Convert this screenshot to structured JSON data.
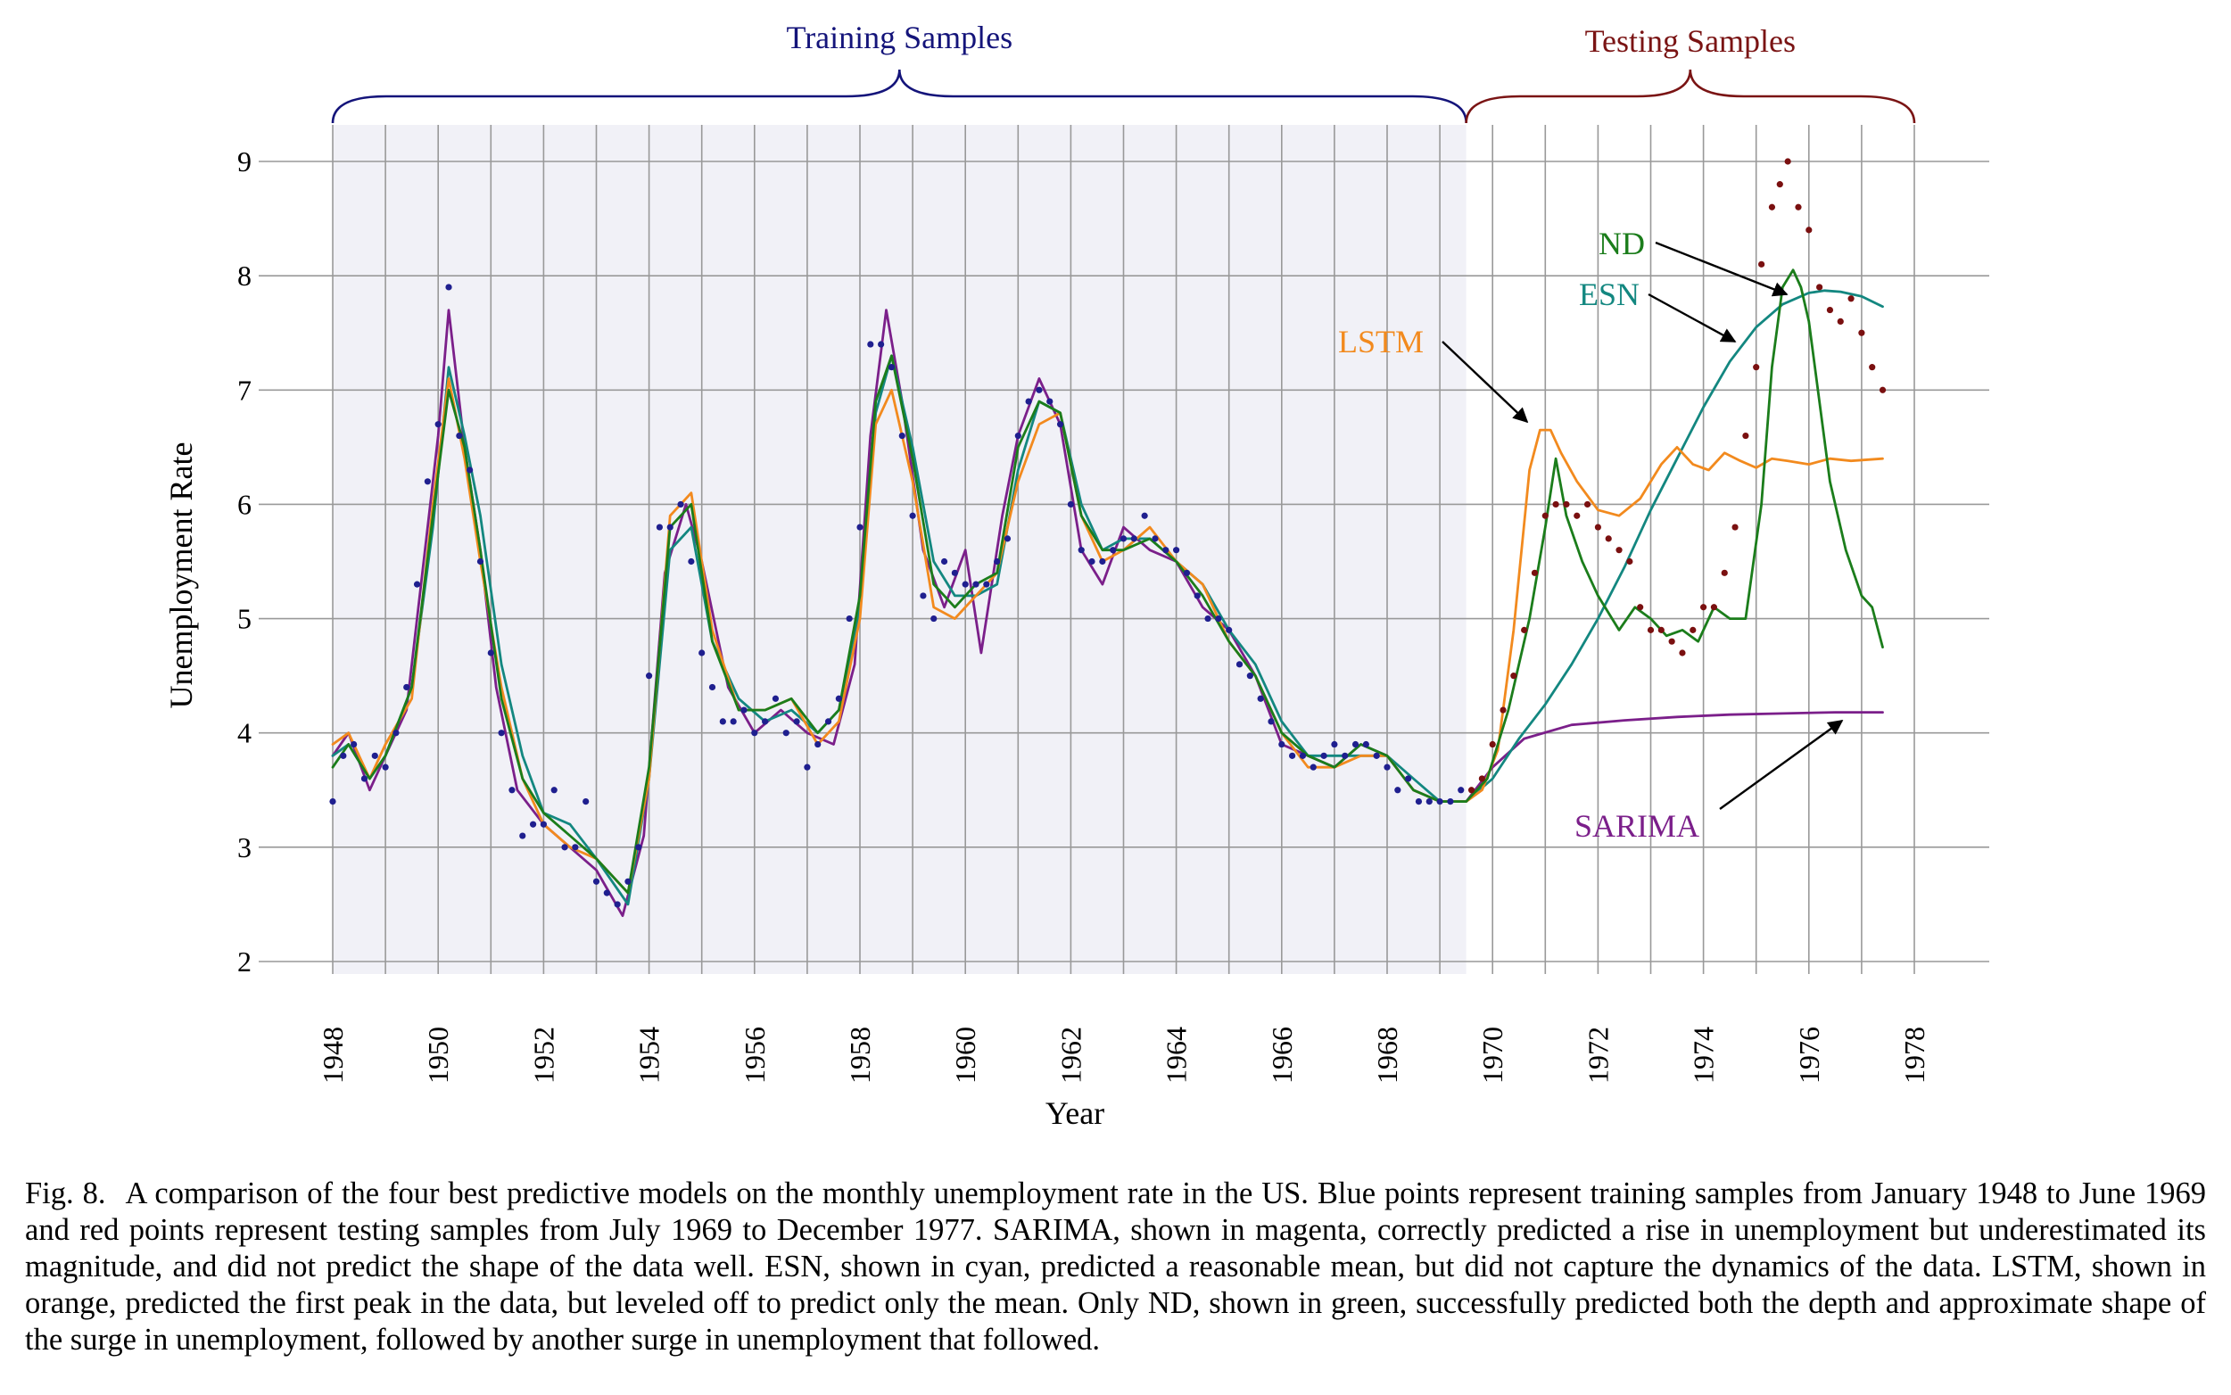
{
  "chart_data": {
    "type": "line",
    "xlabel": "Year",
    "ylabel": "Unemployment Rate",
    "xlim": [
      1948,
      1978
    ],
    "ylim": [
      2,
      9
    ],
    "x_ticks": [
      "1948",
      "1950",
      "1952",
      "1954",
      "1956",
      "1958",
      "1960",
      "1962",
      "1964",
      "1966",
      "1968",
      "1970",
      "1972",
      "1974",
      "1976",
      "1978"
    ],
    "y_ticks": [
      "2",
      "3",
      "4",
      "5",
      "6",
      "7",
      "8",
      "9"
    ],
    "x_grid_step": 1,
    "grid": true,
    "training_region": [
      1948,
      1969.5
    ],
    "bracket_labels": {
      "training": "Training Samples",
      "testing": "Testing Samples"
    },
    "colors": {
      "training_points": "#1f1f8f",
      "testing_points": "#7a1010",
      "SARIMA": "#7b1f8a",
      "ESN": "#138780",
      "LSTM": "#f28a1e",
      "ND": "#1b7d1b",
      "training_label": "#14147a",
      "testing_label": "#7a1414",
      "shade": "#f1f1f7"
    },
    "training_points": [
      [
        1948.0,
        3.4
      ],
      [
        1948.2,
        3.8
      ],
      [
        1948.4,
        3.9
      ],
      [
        1948.6,
        3.6
      ],
      [
        1948.8,
        3.8
      ],
      [
        1949.0,
        3.7
      ],
      [
        1949.2,
        4.0
      ],
      [
        1949.4,
        4.4
      ],
      [
        1949.6,
        5.3
      ],
      [
        1949.8,
        6.2
      ],
      [
        1950.0,
        6.7
      ],
      [
        1950.2,
        7.9
      ],
      [
        1950.4,
        6.6
      ],
      [
        1950.6,
        6.3
      ],
      [
        1950.8,
        5.5
      ],
      [
        1951.0,
        4.7
      ],
      [
        1951.2,
        4.0
      ],
      [
        1951.4,
        3.5
      ],
      [
        1951.6,
        3.1
      ],
      [
        1951.8,
        3.2
      ],
      [
        1952.0,
        3.2
      ],
      [
        1952.2,
        3.5
      ],
      [
        1952.4,
        3.0
      ],
      [
        1952.6,
        3.0
      ],
      [
        1952.8,
        3.4
      ],
      [
        1953.0,
        2.7
      ],
      [
        1953.2,
        2.6
      ],
      [
        1953.4,
        2.5
      ],
      [
        1953.6,
        2.7
      ],
      [
        1953.8,
        3.0
      ],
      [
        1954.0,
        4.5
      ],
      [
        1954.2,
        5.8
      ],
      [
        1954.4,
        5.8
      ],
      [
        1954.6,
        6.0
      ],
      [
        1954.8,
        5.5
      ],
      [
        1955.0,
        4.7
      ],
      [
        1955.2,
        4.4
      ],
      [
        1955.4,
        4.1
      ],
      [
        1955.6,
        4.1
      ],
      [
        1955.8,
        4.2
      ],
      [
        1956.0,
        4.0
      ],
      [
        1956.2,
        4.1
      ],
      [
        1956.4,
        4.3
      ],
      [
        1956.6,
        4.0
      ],
      [
        1956.8,
        4.1
      ],
      [
        1957.0,
        3.7
      ],
      [
        1957.2,
        3.9
      ],
      [
        1957.4,
        4.1
      ],
      [
        1957.6,
        4.3
      ],
      [
        1957.8,
        5.0
      ],
      [
        1958.0,
        5.8
      ],
      [
        1958.2,
        7.4
      ],
      [
        1958.4,
        7.4
      ],
      [
        1958.6,
        7.2
      ],
      [
        1958.8,
        6.6
      ],
      [
        1959.0,
        5.9
      ],
      [
        1959.2,
        5.2
      ],
      [
        1959.4,
        5.0
      ],
      [
        1959.6,
        5.5
      ],
      [
        1959.8,
        5.4
      ],
      [
        1960.0,
        5.3
      ],
      [
        1960.2,
        5.3
      ],
      [
        1960.4,
        5.3
      ],
      [
        1960.6,
        5.5
      ],
      [
        1960.8,
        5.7
      ],
      [
        1961.0,
        6.6
      ],
      [
        1961.2,
        6.9
      ],
      [
        1961.4,
        7.0
      ],
      [
        1961.6,
        6.9
      ],
      [
        1961.8,
        6.7
      ],
      [
        1962.0,
        6.0
      ],
      [
        1962.2,
        5.6
      ],
      [
        1962.4,
        5.5
      ],
      [
        1962.6,
        5.5
      ],
      [
        1962.8,
        5.6
      ],
      [
        1963.0,
        5.7
      ],
      [
        1963.2,
        5.7
      ],
      [
        1963.4,
        5.9
      ],
      [
        1963.6,
        5.7
      ],
      [
        1963.8,
        5.6
      ],
      [
        1964.0,
        5.6
      ],
      [
        1964.2,
        5.4
      ],
      [
        1964.4,
        5.2
      ],
      [
        1964.6,
        5.0
      ],
      [
        1964.8,
        5.0
      ],
      [
        1965.0,
        4.9
      ],
      [
        1965.2,
        4.6
      ],
      [
        1965.4,
        4.5
      ],
      [
        1965.6,
        4.3
      ],
      [
        1965.8,
        4.1
      ],
      [
        1966.0,
        3.9
      ],
      [
        1966.2,
        3.8
      ],
      [
        1966.4,
        3.8
      ],
      [
        1966.6,
        3.7
      ],
      [
        1966.8,
        3.8
      ],
      [
        1967.0,
        3.9
      ],
      [
        1967.2,
        3.8
      ],
      [
        1967.4,
        3.9
      ],
      [
        1967.6,
        3.9
      ],
      [
        1967.8,
        3.8
      ],
      [
        1968.0,
        3.7
      ],
      [
        1968.2,
        3.5
      ],
      [
        1968.4,
        3.6
      ],
      [
        1968.6,
        3.4
      ],
      [
        1968.8,
        3.4
      ],
      [
        1969.0,
        3.4
      ],
      [
        1969.2,
        3.4
      ],
      [
        1969.4,
        3.5
      ]
    ],
    "testing_points": [
      [
        1969.6,
        3.5
      ],
      [
        1969.8,
        3.6
      ],
      [
        1970.0,
        3.9
      ],
      [
        1970.2,
        4.2
      ],
      [
        1970.4,
        4.5
      ],
      [
        1970.6,
        4.9
      ],
      [
        1970.8,
        5.4
      ],
      [
        1971.0,
        5.9
      ],
      [
        1971.2,
        6.0
      ],
      [
        1971.4,
        6.0
      ],
      [
        1971.6,
        5.9
      ],
      [
        1971.8,
        6.0
      ],
      [
        1972.0,
        5.8
      ],
      [
        1972.2,
        5.7
      ],
      [
        1972.4,
        5.6
      ],
      [
        1972.6,
        5.5
      ],
      [
        1972.8,
        5.1
      ],
      [
        1973.0,
        4.9
      ],
      [
        1973.2,
        4.9
      ],
      [
        1973.4,
        4.8
      ],
      [
        1973.6,
        4.7
      ],
      [
        1973.8,
        4.9
      ],
      [
        1974.0,
        5.1
      ],
      [
        1974.2,
        5.1
      ],
      [
        1974.4,
        5.4
      ],
      [
        1974.6,
        5.8
      ],
      [
        1974.8,
        6.6
      ],
      [
        1975.0,
        7.2
      ],
      [
        1975.1,
        8.1
      ],
      [
        1975.3,
        8.6
      ],
      [
        1975.45,
        8.8
      ],
      [
        1975.6,
        9.0
      ],
      [
        1975.8,
        8.6
      ],
      [
        1976.0,
        8.4
      ],
      [
        1976.2,
        7.9
      ],
      [
        1976.4,
        7.7
      ],
      [
        1976.6,
        7.6
      ],
      [
        1976.8,
        7.8
      ],
      [
        1977.0,
        7.5
      ],
      [
        1977.2,
        7.2
      ],
      [
        1977.4,
        7.0
      ]
    ],
    "series": [
      {
        "name": "SARIMA",
        "x": [
          1948.0,
          1948.3,
          1948.7,
          1949.0,
          1949.4,
          1949.8,
          1950.0,
          1950.2,
          1950.5,
          1950.8,
          1951.1,
          1951.5,
          1952.0,
          1952.5,
          1953.0,
          1953.5,
          1953.9,
          1954.3,
          1954.7,
          1955.0,
          1955.5,
          1956.0,
          1956.5,
          1957.0,
          1957.5,
          1957.9,
          1958.2,
          1958.5,
          1958.8,
          1959.2,
          1959.6,
          1960.0,
          1960.3,
          1960.7,
          1961.0,
          1961.4,
          1961.8,
          1962.2,
          1962.6,
          1963.0,
          1963.5,
          1964.0,
          1964.5,
          1965.0,
          1965.5,
          1966.0,
          1966.5,
          1967.0,
          1967.5,
          1968.0,
          1968.5,
          1969.0,
          1969.5,
          1970.0,
          1970.6,
          1971.5,
          1972.5,
          1973.5,
          1974.5,
          1975.5,
          1976.5,
          1977.4
        ],
        "y": [
          3.8,
          4.0,
          3.5,
          3.8,
          4.2,
          5.8,
          6.6,
          7.7,
          6.5,
          5.6,
          4.4,
          3.5,
          3.2,
          3.0,
          2.8,
          2.4,
          3.1,
          5.4,
          6.0,
          5.5,
          4.4,
          4.0,
          4.2,
          4.0,
          3.9,
          4.6,
          6.6,
          7.7,
          6.9,
          5.6,
          5.1,
          5.6,
          4.7,
          5.9,
          6.6,
          7.1,
          6.7,
          5.6,
          5.3,
          5.8,
          5.6,
          5.5,
          5.1,
          4.9,
          4.5,
          3.9,
          3.8,
          3.7,
          3.9,
          3.8,
          3.5,
          3.4,
          3.4,
          3.7,
          3.95,
          4.07,
          4.11,
          4.14,
          4.16,
          4.17,
          4.18,
          4.18
        ]
      },
      {
        "name": "ESN",
        "x": [
          1948.0,
          1948.3,
          1948.7,
          1949.0,
          1949.5,
          1949.9,
          1950.2,
          1950.5,
          1950.8,
          1951.2,
          1951.6,
          1952.0,
          1952.5,
          1953.0,
          1953.6,
          1954.0,
          1954.4,
          1954.8,
          1955.2,
          1955.7,
          1956.2,
          1956.7,
          1957.2,
          1957.6,
          1958.0,
          1958.3,
          1958.6,
          1959.0,
          1959.4,
          1959.8,
          1960.2,
          1960.6,
          1961.0,
          1961.4,
          1961.8,
          1962.2,
          1962.6,
          1963.0,
          1963.5,
          1964.0,
          1964.5,
          1965.0,
          1965.5,
          1966.0,
          1966.5,
          1967.0,
          1967.5,
          1968.0,
          1968.5,
          1969.0,
          1969.5,
          1970.0,
          1970.5,
          1971.0,
          1971.5,
          1972.0,
          1972.5,
          1973.0,
          1973.5,
          1974.0,
          1974.5,
          1975.0,
          1975.5,
          1976.0,
          1976.3,
          1976.6,
          1977.0,
          1977.4
        ],
        "y": [
          3.8,
          3.9,
          3.6,
          3.8,
          4.4,
          5.8,
          7.2,
          6.6,
          5.9,
          4.6,
          3.8,
          3.3,
          3.2,
          2.9,
          2.5,
          3.6,
          5.6,
          5.8,
          4.8,
          4.3,
          4.1,
          4.2,
          4.0,
          4.2,
          5.1,
          6.8,
          7.3,
          6.5,
          5.5,
          5.2,
          5.2,
          5.3,
          6.3,
          6.9,
          6.8,
          6.0,
          5.6,
          5.7,
          5.7,
          5.5,
          5.3,
          4.9,
          4.6,
          4.1,
          3.8,
          3.8,
          3.8,
          3.8,
          3.6,
          3.4,
          3.4,
          3.6,
          3.95,
          4.25,
          4.6,
          5.0,
          5.45,
          5.95,
          6.4,
          6.85,
          7.25,
          7.55,
          7.75,
          7.85,
          7.87,
          7.86,
          7.82,
          7.73
        ]
      },
      {
        "name": "LSTM",
        "x": [
          1948.0,
          1948.3,
          1948.7,
          1949.0,
          1949.5,
          1949.9,
          1950.2,
          1950.5,
          1950.8,
          1951.2,
          1951.6,
          1952.0,
          1952.5,
          1953.0,
          1953.6,
          1954.0,
          1954.4,
          1954.8,
          1955.2,
          1955.7,
          1956.2,
          1956.7,
          1957.2,
          1957.6,
          1958.0,
          1958.3,
          1958.6,
          1959.0,
          1959.4,
          1959.8,
          1960.2,
          1960.6,
          1961.0,
          1961.4,
          1961.8,
          1962.2,
          1962.6,
          1963.0,
          1963.5,
          1964.0,
          1964.5,
          1965.0,
          1965.5,
          1966.0,
          1966.5,
          1967.0,
          1967.5,
          1968.0,
          1968.5,
          1969.0,
          1969.5,
          1969.8,
          1970.1,
          1970.4,
          1970.7,
          1970.9,
          1971.1,
          1971.3,
          1971.6,
          1972.0,
          1972.4,
          1972.8,
          1973.2,
          1973.5,
          1973.8,
          1974.1,
          1974.4,
          1974.7,
          1975.0,
          1975.3,
          1975.6,
          1976.0,
          1976.4,
          1976.8,
          1977.4
        ],
        "y": [
          3.9,
          4.0,
          3.6,
          3.9,
          4.3,
          6.0,
          7.1,
          6.4,
          5.5,
          4.4,
          3.6,
          3.2,
          3.0,
          2.9,
          2.6,
          3.6,
          5.9,
          6.1,
          4.9,
          4.2,
          4.2,
          4.3,
          3.9,
          4.1,
          5.0,
          6.7,
          7.0,
          6.2,
          5.1,
          5.0,
          5.2,
          5.4,
          6.2,
          6.7,
          6.8,
          5.9,
          5.5,
          5.6,
          5.8,
          5.5,
          5.3,
          4.8,
          4.5,
          4.0,
          3.7,
          3.7,
          3.8,
          3.8,
          3.5,
          3.4,
          3.4,
          3.5,
          3.85,
          4.9,
          6.3,
          6.65,
          6.65,
          6.45,
          6.2,
          5.95,
          5.9,
          6.05,
          6.35,
          6.5,
          6.35,
          6.3,
          6.45,
          6.38,
          6.32,
          6.4,
          6.38,
          6.35,
          6.4,
          6.38,
          6.4
        ]
      },
      {
        "name": "ND",
        "x": [
          1948.0,
          1948.3,
          1948.7,
          1949.0,
          1949.5,
          1949.9,
          1950.2,
          1950.5,
          1950.8,
          1951.2,
          1951.6,
          1952.0,
          1952.5,
          1953.0,
          1953.6,
          1954.0,
          1954.4,
          1954.8,
          1955.2,
          1955.7,
          1956.2,
          1956.7,
          1957.2,
          1957.6,
          1958.0,
          1958.3,
          1958.6,
          1959.0,
          1959.4,
          1959.8,
          1960.2,
          1960.6,
          1961.0,
          1961.4,
          1961.8,
          1962.2,
          1962.6,
          1963.0,
          1963.5,
          1964.0,
          1964.5,
          1965.0,
          1965.5,
          1966.0,
          1966.5,
          1967.0,
          1967.5,
          1968.0,
          1968.5,
          1969.0,
          1969.5,
          1969.9,
          1970.3,
          1970.7,
          1971.0,
          1971.2,
          1971.4,
          1971.7,
          1972.0,
          1972.4,
          1972.7,
          1973.0,
          1973.3,
          1973.6,
          1973.9,
          1974.2,
          1974.5,
          1974.8,
          1975.1,
          1975.3,
          1975.5,
          1975.7,
          1975.85,
          1976.0,
          1976.2,
          1976.4,
          1976.7,
          1977.0,
          1977.2,
          1977.4
        ],
        "y": [
          3.7,
          3.9,
          3.6,
          3.8,
          4.4,
          5.9,
          7.0,
          6.5,
          5.6,
          4.3,
          3.6,
          3.3,
          3.1,
          2.9,
          2.6,
          3.7,
          5.8,
          6.0,
          4.8,
          4.2,
          4.2,
          4.3,
          4.0,
          4.2,
          5.2,
          6.9,
          7.3,
          6.4,
          5.3,
          5.1,
          5.3,
          5.4,
          6.5,
          6.9,
          6.8,
          5.9,
          5.6,
          5.6,
          5.7,
          5.5,
          5.2,
          4.8,
          4.5,
          4.0,
          3.8,
          3.7,
          3.9,
          3.8,
          3.5,
          3.4,
          3.4,
          3.6,
          4.2,
          5.0,
          5.8,
          6.4,
          5.9,
          5.5,
          5.2,
          4.9,
          5.1,
          5.0,
          4.85,
          4.9,
          4.8,
          5.1,
          5.0,
          5.0,
          6.0,
          7.2,
          7.9,
          8.05,
          7.9,
          7.6,
          6.9,
          6.2,
          5.6,
          5.2,
          5.1,
          4.75
        ]
      }
    ],
    "series_labels": {
      "ND": "ND",
      "ESN": "ESN",
      "LSTM": "LSTM",
      "SARIMA": "SARIMA"
    }
  },
  "caption": {
    "label": "Fig. 8.",
    "text": "A comparison of the four best predictive models on the monthly unemployment rate in the US. Blue points represent training samples from January 1948 to June 1969 and red points represent testing samples from July 1969 to December 1977. SARIMA, shown in magenta, correctly predicted a rise in unemployment but underestimated its magnitude, and did not predict the shape of the data well. ESN, shown in cyan, predicted a reasonable mean, but did not capture the dynamics of the data. LSTM, shown in orange, predicted the first peak in the data, but leveled off to predict only the mean. Only ND, shown in green, successfully predicted both the depth and approximate shape of the surge in unemployment, followed by another surge in unemployment that followed."
  }
}
